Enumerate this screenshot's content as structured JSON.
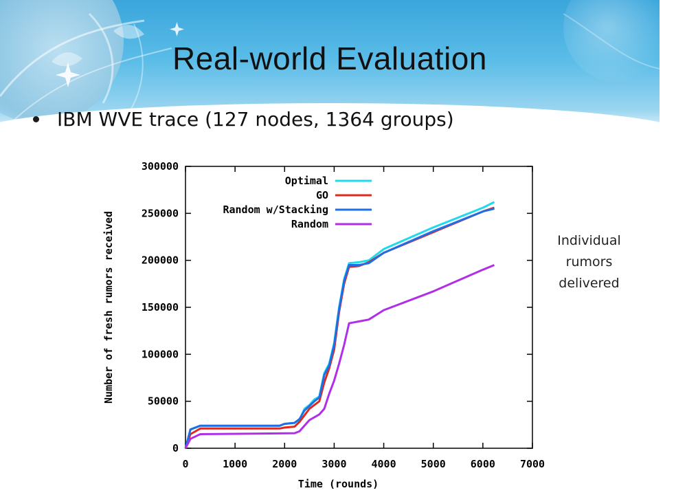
{
  "slide": {
    "title": "Real-world Evaluation",
    "bullet": "IBM WVE trace (127 nodes, 1364 groups)",
    "side_note": [
      "Individual",
      "rumors",
      "delivered"
    ]
  },
  "chart_data": {
    "type": "line",
    "title": "",
    "xlabel": "Time (rounds)",
    "ylabel": "Number of fresh rumors received",
    "xlim": [
      0,
      7000
    ],
    "ylim": [
      0,
      300000
    ],
    "xticks": [
      0,
      1000,
      2000,
      3000,
      4000,
      5000,
      6000,
      7000
    ],
    "xtick_labels": [
      "0",
      "1000",
      "2000",
      "3000",
      "4000",
      "5000",
      "6000",
      "7000"
    ],
    "yticks": [
      0,
      50000,
      100000,
      150000,
      200000,
      250000,
      300000
    ],
    "ytick_labels": [
      "0",
      "50000",
      "100000",
      "150000",
      "200000",
      "250000",
      "300000"
    ],
    "grid": false,
    "legend_position": "top-left",
    "series": [
      {
        "name": "Optimal",
        "color": "#22d8ec",
        "points": [
          [
            0,
            0
          ],
          [
            100,
            20000
          ],
          [
            300,
            24000
          ],
          [
            1900,
            24000
          ],
          [
            2000,
            26000
          ],
          [
            2200,
            27000
          ],
          [
            2300,
            30000
          ],
          [
            2400,
            42000
          ],
          [
            2500,
            46000
          ],
          [
            2600,
            52000
          ],
          [
            2700,
            55000
          ],
          [
            2800,
            80000
          ],
          [
            2900,
            90000
          ],
          [
            3000,
            112000
          ],
          [
            3100,
            150000
          ],
          [
            3200,
            180000
          ],
          [
            3300,
            197000
          ],
          [
            3500,
            198000
          ],
          [
            3700,
            200000
          ],
          [
            4000,
            212000
          ],
          [
            5000,
            235000
          ],
          [
            6000,
            256000
          ],
          [
            6230,
            262000
          ]
        ]
      },
      {
        "name": "GO",
        "color": "#e0281e",
        "points": [
          [
            0,
            0
          ],
          [
            100,
            15000
          ],
          [
            300,
            21000
          ],
          [
            1900,
            21000
          ],
          [
            2000,
            22000
          ],
          [
            2200,
            23000
          ],
          [
            2300,
            28000
          ],
          [
            2400,
            35000
          ],
          [
            2500,
            42000
          ],
          [
            2600,
            46000
          ],
          [
            2700,
            50000
          ],
          [
            2800,
            70000
          ],
          [
            2900,
            85000
          ],
          [
            3000,
            105000
          ],
          [
            3100,
            145000
          ],
          [
            3200,
            175000
          ],
          [
            3300,
            193000
          ],
          [
            3500,
            194000
          ],
          [
            3700,
            198000
          ],
          [
            4000,
            208000
          ],
          [
            5000,
            230000
          ],
          [
            6000,
            252000
          ],
          [
            6230,
            256000
          ]
        ]
      },
      {
        "name": "Random w/Stacking",
        "color": "#1e6ee6",
        "points": [
          [
            0,
            0
          ],
          [
            100,
            20000
          ],
          [
            300,
            24000
          ],
          [
            1900,
            24000
          ],
          [
            2000,
            26000
          ],
          [
            2200,
            27000
          ],
          [
            2300,
            31000
          ],
          [
            2400,
            40000
          ],
          [
            2500,
            45000
          ],
          [
            2600,
            50000
          ],
          [
            2700,
            54000
          ],
          [
            2800,
            78000
          ],
          [
            2900,
            88000
          ],
          [
            3000,
            110000
          ],
          [
            3100,
            148000
          ],
          [
            3200,
            178000
          ],
          [
            3300,
            195000
          ],
          [
            3500,
            195000
          ],
          [
            3700,
            197000
          ],
          [
            4000,
            208000
          ],
          [
            5000,
            231000
          ],
          [
            6000,
            252000
          ],
          [
            6230,
            255000
          ]
        ]
      },
      {
        "name": "Random",
        "color": "#b12ee8",
        "points": [
          [
            0,
            0
          ],
          [
            100,
            10000
          ],
          [
            300,
            15000
          ],
          [
            2200,
            16000
          ],
          [
            2300,
            18000
          ],
          [
            2400,
            24000
          ],
          [
            2500,
            30000
          ],
          [
            2600,
            33000
          ],
          [
            2700,
            36000
          ],
          [
            2800,
            42000
          ],
          [
            2900,
            58000
          ],
          [
            3000,
            72000
          ],
          [
            3100,
            90000
          ],
          [
            3200,
            110000
          ],
          [
            3300,
            133000
          ],
          [
            3500,
            135000
          ],
          [
            3700,
            137000
          ],
          [
            4000,
            147000
          ],
          [
            5000,
            167000
          ],
          [
            6000,
            190000
          ],
          [
            6230,
            195000
          ]
        ]
      }
    ]
  }
}
